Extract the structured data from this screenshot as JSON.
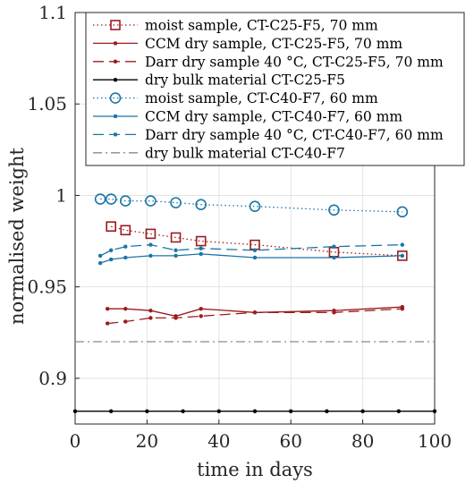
{
  "chart_data": {
    "type": "line",
    "xlabel": "time in days",
    "ylabel": "normalised weight",
    "xlim": [
      0,
      100
    ],
    "ylim": [
      0.875,
      1.1
    ],
    "xticks": [
      "0",
      "20",
      "40",
      "60",
      "80",
      "100"
    ],
    "xtick_values": [
      0,
      20,
      40,
      60,
      80,
      100
    ],
    "yticks": [
      "0.9",
      "0.95",
      "1",
      "1.05",
      "1.1"
    ],
    "ytick_values": [
      0.9,
      0.95,
      1,
      1.05,
      1.1
    ],
    "grid": true,
    "legend_position": "top-right",
    "series": [
      {
        "name": "moist sample, CT-C25-F5, 70 mm",
        "color": "#9b1c1f",
        "line": "dotted",
        "marker": "square",
        "x": [
          10,
          14,
          21,
          28,
          35,
          50,
          72,
          91
        ],
        "y": [
          0.983,
          0.981,
          0.979,
          0.977,
          0.975,
          0.973,
          0.969,
          0.967
        ]
      },
      {
        "name": "CCM dry sample, CT-C25-F5, 70 mm",
        "color": "#9b1c1f",
        "line": "solid",
        "marker": "dot",
        "x": [
          9,
          14,
          21,
          28,
          35,
          50,
          72,
          91
        ],
        "y": [
          0.938,
          0.938,
          0.937,
          0.934,
          0.938,
          0.936,
          0.937,
          0.939
        ]
      },
      {
        "name": "Darr dry sample 40 °C, CT-C25-F5, 70 mm",
        "color": "#9b1c1f",
        "line": "dashed",
        "marker": "dot",
        "x": [
          9,
          14,
          21,
          28,
          35,
          50,
          72,
          91
        ],
        "y": [
          0.93,
          0.931,
          0.933,
          0.933,
          0.934,
          0.936,
          0.936,
          0.938
        ]
      },
      {
        "name": "dry bulk material CT-C25-F5",
        "color": "#000000",
        "line": "solid",
        "marker": "dot",
        "x": [
          0,
          10,
          20,
          30,
          40,
          50,
          60,
          70,
          80,
          90,
          100
        ],
        "y": [
          0.882,
          0.882,
          0.882,
          0.882,
          0.882,
          0.882,
          0.882,
          0.882,
          0.882,
          0.882,
          0.882
        ]
      },
      {
        "name": "moist sample, CT-C40-F7, 60 mm",
        "color": "#1b75a6",
        "line": "dotted",
        "marker": "circle",
        "x": [
          7,
          10,
          14,
          21,
          28,
          35,
          50,
          72,
          91
        ],
        "y": [
          0.998,
          0.998,
          0.997,
          0.997,
          0.996,
          0.995,
          0.994,
          0.992,
          0.991
        ]
      },
      {
        "name": "CCM dry sample, CT-C40-F7, 60 mm",
        "color": "#1b75a6",
        "line": "solid",
        "marker": "dot",
        "x": [
          7,
          10,
          14,
          21,
          28,
          35,
          50,
          72,
          91
        ],
        "y": [
          0.963,
          0.965,
          0.966,
          0.967,
          0.967,
          0.968,
          0.966,
          0.966,
          0.967
        ]
      },
      {
        "name": "Darr dry sample 40 °C, CT-C40-F7, 60 mm",
        "color": "#1b75a6",
        "line": "dashed",
        "marker": "dot",
        "x": [
          7,
          10,
          14,
          21,
          28,
          35,
          50,
          72,
          91
        ],
        "y": [
          0.967,
          0.97,
          0.972,
          0.973,
          0.97,
          0.971,
          0.97,
          0.972,
          0.973
        ]
      },
      {
        "name": "dry bulk material CT-C40-F7",
        "color": "#8a8a8a",
        "line": "dashdot",
        "marker": "none",
        "x": [
          0,
          100
        ],
        "y": [
          0.92,
          0.92
        ]
      }
    ]
  }
}
